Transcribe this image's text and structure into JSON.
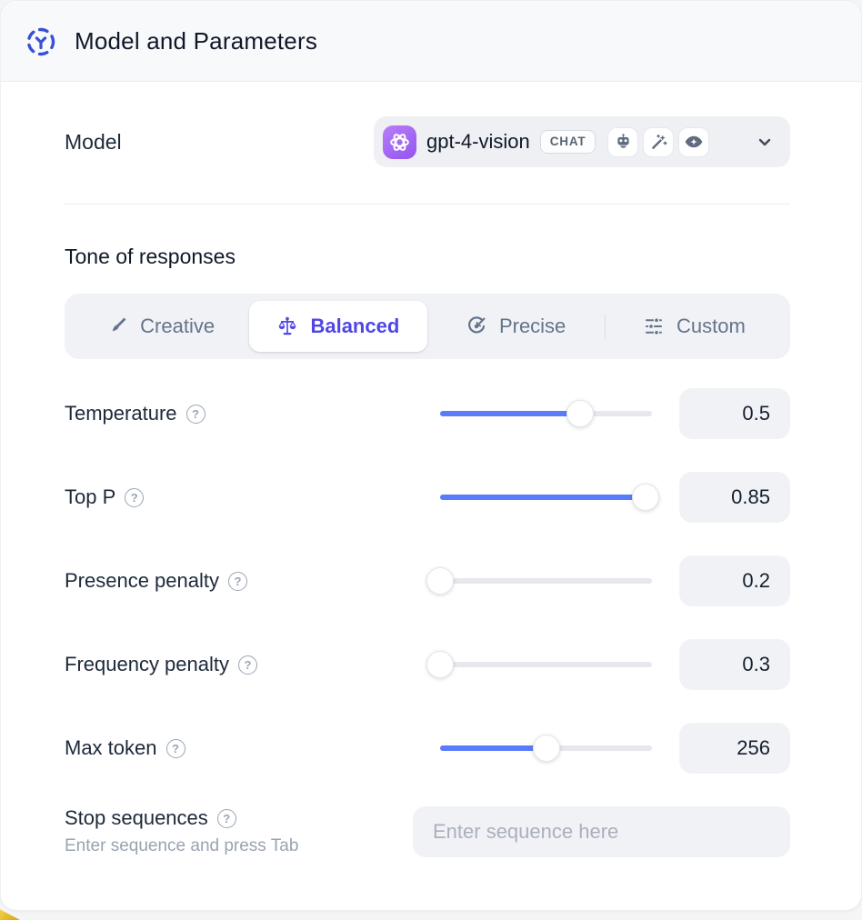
{
  "header": {
    "title": "Model and Parameters"
  },
  "model_row": {
    "label": "Model",
    "model_name": "gpt-4-vision",
    "badge": "CHAT",
    "capability_icons": [
      "robot-icon",
      "magic-wand-icon",
      "vision-eye-icon"
    ]
  },
  "tone": {
    "heading": "Tone of responses",
    "tabs": [
      {
        "label": "Creative",
        "icon": "paintbrush-icon",
        "selected": false
      },
      {
        "label": "Balanced",
        "icon": "balance-scale-icon",
        "selected": true
      },
      {
        "label": "Precise",
        "icon": "target-icon",
        "selected": false
      },
      {
        "label": "Custom",
        "icon": "sliders-icon",
        "selected": false
      }
    ]
  },
  "sliders": [
    {
      "label": "Temperature",
      "value": "0.5",
      "fill_percent": 66
    },
    {
      "label": "Top P",
      "value": "0.85",
      "fill_percent": 97
    },
    {
      "label": "Presence penalty",
      "value": "0.2",
      "fill_percent": 0
    },
    {
      "label": "Frequency penalty",
      "value": "0.3",
      "fill_percent": 0
    },
    {
      "label": "Max token",
      "value": "256",
      "fill_percent": 50
    }
  ],
  "stop_sequences": {
    "label": "Stop sequences",
    "hint": "Enter sequence and press Tab",
    "placeholder": "Enter sequence here"
  },
  "colors": {
    "slider_accent": "#5b7cfa",
    "selected_tab": "#4f46e5",
    "brand_purple": "#9355ef",
    "header_icon_blue": "#3850d6"
  }
}
